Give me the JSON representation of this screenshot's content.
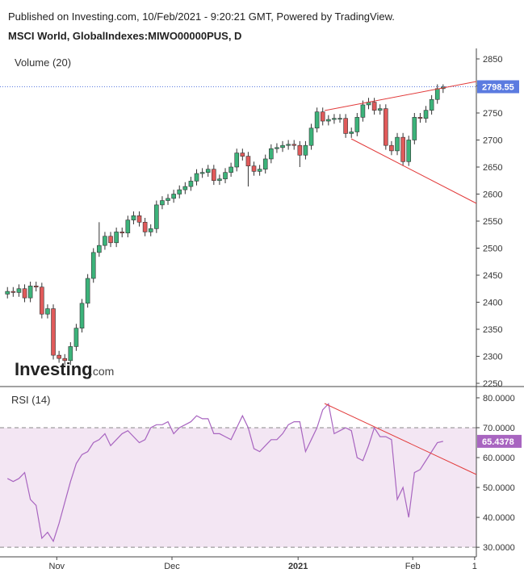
{
  "header": {
    "published": "Published on Investing.com, 10/Feb/2021 - 9:20:21 GMT, Powered by TradingView.",
    "symbol": "MSCI World, GlobalIndexes:MIWO00000PUS, D",
    "logo": "Investing",
    "logo_suffix": ".com"
  },
  "chart_data": [
    {
      "type": "candlestick",
      "subtitle": "Volume (20)",
      "up_color": "#3cb37a",
      "down_color": "#e05a5a",
      "last_color": "#5b7be0",
      "xlim": [
        -1.3,
        81.8
      ],
      "xticks": [
        {
          "value": 8.6,
          "label": "Nov"
        },
        {
          "value": 28.7,
          "label": "Dec"
        },
        {
          "value": 50.7,
          "label": "2021"
        },
        {
          "value": 70.7,
          "label": "Feb"
        },
        {
          "value": 81.5,
          "label": "1"
        }
      ],
      "ylim": [
        2245.5,
        2869.4
      ],
      "yticks": [
        2250,
        2300,
        2350,
        2400,
        2450,
        2500,
        2550,
        2600,
        2650,
        2700,
        2750,
        2800,
        2850
      ],
      "open": [
        2415,
        2420,
        2418,
        2425,
        2408,
        2430,
        2428,
        2378,
        2388,
        2302,
        2296,
        2292,
        2318,
        2352,
        2398,
        2444,
        2492,
        2505,
        2522,
        2510,
        2530,
        2528,
        2552,
        2560,
        2548,
        2530,
        2536,
        2580,
        2588,
        2592,
        2600,
        2608,
        2614,
        2624,
        2638,
        2640,
        2646,
        2625,
        2628,
        2640,
        2650,
        2676,
        2670,
        2652,
        2642,
        2646,
        2665,
        2684,
        2686,
        2690,
        2692,
        2690,
        2672,
        2690,
        2722,
        2752,
        2735,
        2738,
        2740,
        2740,
        2712,
        2715,
        2742,
        2765,
        2770,
        2755,
        2758,
        2690,
        2680,
        2705,
        2660,
        2700,
        2742,
        2740,
        2755,
        2775,
        2795
      ],
      "high": [
        2428,
        2428,
        2433,
        2433,
        2438,
        2438,
        2436,
        2396,
        2396,
        2310,
        2304,
        2326,
        2360,
        2406,
        2452,
        2500,
        2548,
        2530,
        2530,
        2538,
        2538,
        2560,
        2568,
        2568,
        2556,
        2544,
        2588,
        2596,
        2600,
        2608,
        2616,
        2622,
        2632,
        2646,
        2648,
        2654,
        2654,
        2636,
        2648,
        2658,
        2684,
        2684,
        2678,
        2660,
        2654,
        2673,
        2692,
        2694,
        2698,
        2700,
        2700,
        2698,
        2698,
        2730,
        2760,
        2760,
        2746,
        2748,
        2748,
        2748,
        2723,
        2750,
        2773,
        2778,
        2778,
        2766,
        2766,
        2698,
        2713,
        2713,
        2708,
        2750,
        2750,
        2763,
        2783,
        2803,
        2803
      ],
      "low": [
        2407,
        2410,
        2410,
        2400,
        2400,
        2420,
        2370,
        2370,
        2294,
        2288,
        2284,
        2284,
        2310,
        2344,
        2390,
        2436,
        2484,
        2497,
        2502,
        2502,
        2520,
        2520,
        2544,
        2540,
        2522,
        2522,
        2528,
        2572,
        2580,
        2584,
        2592,
        2600,
        2606,
        2616,
        2630,
        2632,
        2617,
        2617,
        2620,
        2632,
        2642,
        2662,
        2614,
        2634,
        2634,
        2638,
        2657,
        2676,
        2678,
        2682,
        2682,
        2650,
        2664,
        2682,
        2714,
        2727,
        2727,
        2730,
        2732,
        2704,
        2704,
        2707,
        2734,
        2757,
        2747,
        2747,
        2682,
        2672,
        2672,
        2652,
        2652,
        2692,
        2732,
        2732,
        2747,
        2767,
        2787
      ],
      "close": [
        2420,
        2418,
        2425,
        2408,
        2430,
        2428,
        2378,
        2388,
        2302,
        2296,
        2292,
        2318,
        2352,
        2398,
        2444,
        2492,
        2505,
        2522,
        2510,
        2530,
        2528,
        2552,
        2560,
        2548,
        2530,
        2536,
        2580,
        2588,
        2592,
        2600,
        2608,
        2614,
        2624,
        2638,
        2640,
        2646,
        2625,
        2628,
        2640,
        2650,
        2676,
        2670,
        2652,
        2642,
        2646,
        2665,
        2684,
        2686,
        2690,
        2692,
        2690,
        2672,
        2690,
        2722,
        2752,
        2735,
        2738,
        2740,
        2740,
        2712,
        2715,
        2742,
        2765,
        2770,
        2755,
        2758,
        2690,
        2680,
        2705,
        2660,
        2700,
        2742,
        2740,
        2755,
        2775,
        2795,
        2798.55
      ]
    },
    {
      "type": "line",
      "subtitle": "RSI (14)",
      "color": "#a865c0",
      "band_color": "#f3e6f3",
      "ylim": [
        26.8,
        83.5
      ],
      "yticks": [
        {
          "value": 30,
          "label": "30.0000"
        },
        {
          "value": 40,
          "label": "40.0000"
        },
        {
          "value": 50,
          "label": "50.0000"
        },
        {
          "value": 60,
          "label": "60.0000"
        },
        {
          "value": 70,
          "label": "70.0000"
        },
        {
          "value": 80,
          "label": "80.0000"
        }
      ],
      "bands": [
        30,
        70
      ],
      "values": [
        53,
        52,
        53,
        55,
        46,
        44,
        33,
        35,
        32,
        38,
        45,
        52,
        58,
        61,
        62,
        65,
        66,
        68,
        64,
        66,
        68,
        69,
        67,
        65,
        66,
        70,
        71,
        71,
        72,
        68,
        70,
        71,
        72,
        74,
        73,
        73,
        68,
        68,
        67,
        66,
        70,
        74,
        70,
        63,
        62,
        64,
        66,
        66,
        68,
        71,
        72,
        72,
        62,
        66,
        70,
        76,
        78,
        68,
        69,
        70,
        69,
        60,
        59,
        64,
        70,
        67,
        67,
        66,
        46,
        50,
        40,
        55,
        56,
        59,
        62,
        65,
        65.4378
      ]
    }
  ]
}
